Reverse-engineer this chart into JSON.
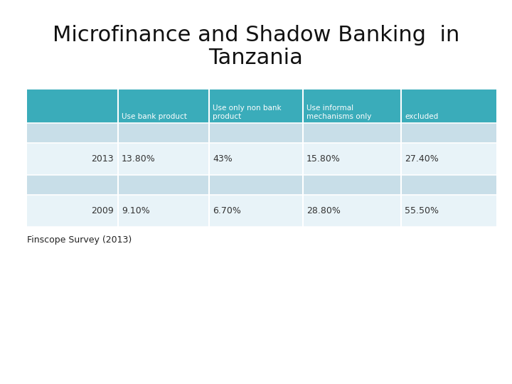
{
  "title_line1": "Microfinance and Shadow Banking  in",
  "title_line2": "Tanzania",
  "headers": [
    "",
    "Use bank product",
    "Use only non bank\nproduct",
    "Use informal\nmechanisms only",
    "excluded"
  ],
  "rows": [
    [
      "2013",
      "13.80%",
      "43%",
      "15.80%",
      "27.40%"
    ],
    [
      "2009",
      "9.10%",
      "6.70%",
      "28.80%",
      "55.50%"
    ]
  ],
  "header_bg": "#3AACBA",
  "header_text": "#ffffff",
  "blank_bg": "#C8DEE8",
  "data_bg": "#E8F3F8",
  "row_text": "#333333",
  "footer": "Finscope Survey (2013)",
  "title_fontsize": 22,
  "header_fontsize": 7.5,
  "cell_fontsize": 9,
  "footer_fontsize": 9
}
